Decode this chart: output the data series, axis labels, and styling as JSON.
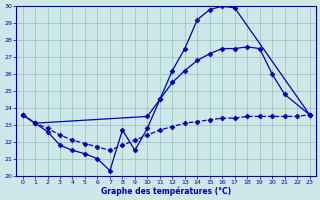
{
  "xlabel": "Graphe des températures (°C)",
  "xlim": [
    -0.5,
    23.5
  ],
  "ylim": [
    20,
    30
  ],
  "yticks": [
    20,
    21,
    22,
    23,
    24,
    25,
    26,
    27,
    28,
    29,
    30
  ],
  "xticks": [
    0,
    1,
    2,
    3,
    4,
    5,
    6,
    7,
    8,
    9,
    10,
    11,
    12,
    13,
    14,
    15,
    16,
    17,
    18,
    19,
    20,
    21,
    22,
    23
  ],
  "background_color": "#cde8e8",
  "line_color": "#0000bb",
  "grid_color": "#9bbcbc",
  "line1_solid_peak": {
    "x": [
      0,
      1,
      2,
      3,
      4,
      5,
      6,
      7,
      8,
      9,
      10,
      11,
      12,
      13,
      14,
      15,
      16,
      17,
      23
    ],
    "y": [
      23.6,
      23.1,
      22.6,
      21.8,
      21.5,
      21.3,
      21.0,
      20.3,
      22.7,
      21.5,
      22.8,
      24.5,
      26.2,
      27.5,
      29.2,
      29.8,
      30.0,
      29.9,
      23.6
    ]
  },
  "line2_solid_mid": {
    "x": [
      0,
      1,
      10,
      11,
      12,
      13,
      14,
      15,
      16,
      17,
      18,
      19,
      20,
      21,
      23
    ],
    "y": [
      23.6,
      23.1,
      23.5,
      24.5,
      25.5,
      26.2,
      26.8,
      27.2,
      27.5,
      27.5,
      27.6,
      27.5,
      26.0,
      24.8,
      23.6
    ]
  },
  "line3_dashed_flat": {
    "x": [
      0,
      1,
      2,
      3,
      4,
      5,
      6,
      7,
      8,
      9,
      10,
      11,
      12,
      13,
      14,
      15,
      16,
      17,
      18,
      19,
      20,
      21,
      22,
      23
    ],
    "y": [
      23.6,
      23.1,
      22.8,
      22.4,
      22.1,
      21.9,
      21.7,
      21.5,
      21.8,
      22.1,
      22.4,
      22.7,
      22.9,
      23.1,
      23.2,
      23.3,
      23.4,
      23.4,
      23.5,
      23.5,
      23.5,
      23.5,
      23.5,
      23.6
    ]
  },
  "line4_bottom": {
    "x": [
      1,
      2,
      3,
      4,
      5,
      6,
      7,
      8,
      9
    ],
    "y": [
      23.1,
      22.6,
      21.8,
      21.5,
      21.3,
      21.0,
      20.3,
      22.7,
      22.5
    ]
  }
}
